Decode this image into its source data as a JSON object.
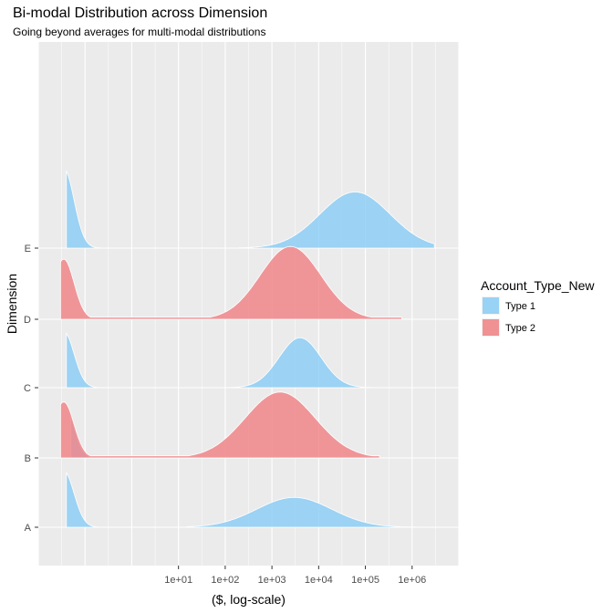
{
  "title": "Bi-modal Distribution across Dimension",
  "subtitle": "Going beyond averages for multi-modal distributions",
  "colors": {
    "panel_bg": "#EBEBEB",
    "grid": "#FFFFFF",
    "type1_fill": "#8ECEF5",
    "type2_fill": "#F0868A",
    "tick_text": "#4D4D4D"
  },
  "chart_data": {
    "type": "area",
    "chart_subtype": "ridgeline density",
    "title": "Bi-modal Distribution across Dimension",
    "subtitle": "Going beyond averages for multi-modal distributions",
    "xlabel": "($, log-scale)",
    "ylabel": "Dimension",
    "x_scale": "log10",
    "xlim": [
      0.01,
      10000000
    ],
    "x_ticks": [
      10,
      100,
      1000,
      10000,
      100000,
      1000000
    ],
    "x_tick_labels": [
      "1e+01",
      "1e+02",
      "1e+03",
      "1e+04",
      "1e+05",
      "1e+06"
    ],
    "categories": [
      "A",
      "B",
      "C",
      "D",
      "E"
    ],
    "grid": true,
    "legend": {
      "title": "Account_Type_New",
      "position": "right",
      "entries": [
        "Type 1",
        "Type 2"
      ]
    },
    "series": [
      {
        "name": "Type 1",
        "color": "#8ECEF5",
        "ridges": [
          {
            "category": "A",
            "x_min": 0.04,
            "x_max": 0.4,
            "peak": 0.035,
            "peak_height": 0.81,
            "peak_width_decades": 0.22,
            "x_min2": 15,
            "x_max2": 1500000,
            "peak2": 3000,
            "peak2_height": 0.43,
            "peak2_width_decades": 0.8
          },
          {
            "category": "B",
            "x_min": 0.05,
            "x_max": 0.3,
            "peak": 0.035,
            "peak_height": 0.81,
            "peak_width_decades": 0.2
          },
          {
            "category": "C",
            "x_min": 0.04,
            "x_max": 0.35,
            "peak": 0.035,
            "peak_height": 0.81,
            "peak_width_decades": 0.22,
            "x_min2": 50,
            "x_max2": 2000000,
            "peak2": 4000,
            "peak2_height": 0.72,
            "peak2_width_decades": 0.45
          },
          {
            "category": "E",
            "x_min": 0.04,
            "x_max": 0.4,
            "peak": 0.035,
            "peak_height": 1.15,
            "peak_width_decades": 0.22,
            "x_min2": 200,
            "x_max2": 3000000,
            "peak2": 60000,
            "peak2_height": 0.81,
            "peak2_width_decades": 0.75
          }
        ]
      },
      {
        "name": "Type 2",
        "color": "#F0868A",
        "ridges": [
          {
            "category": "B",
            "x_min": 0.03,
            "x_max": 200000,
            "peak": 0.035,
            "peak_height": 0.81,
            "peak_width_decades": 0.22,
            "peak2": 1500,
            "peak2_height": 0.95,
            "peak2_width_decades": 0.75
          },
          {
            "category": "D",
            "x_min": 0.03,
            "x_max": 600000,
            "peak": 0.035,
            "peak_height": 0.87,
            "peak_width_decades": 0.22,
            "peak2": 2500,
            "peak2_height": 1.05,
            "peak2_width_decades": 0.65
          }
        ]
      }
    ]
  }
}
